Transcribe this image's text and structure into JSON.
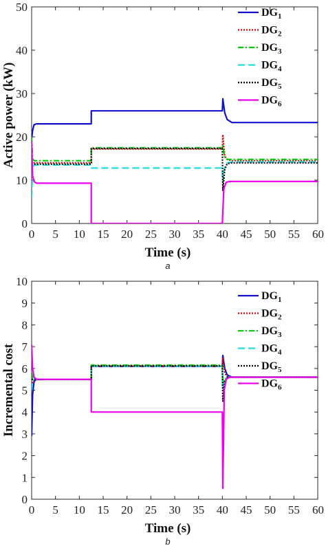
{
  "chart_data": [
    {
      "type": "line",
      "caption": "a",
      "xlabel": "Time (s)",
      "ylabel": "Active power (kW)",
      "xlim": [
        0,
        60
      ],
      "ylim": [
        0,
        50
      ],
      "xticks": [
        "0",
        "5",
        "10",
        "15",
        "20",
        "25",
        "30",
        "35",
        "40",
        "45",
        "50",
        "55",
        "60"
      ],
      "yticks": [
        "0",
        "10",
        "20",
        "30",
        "40",
        "50"
      ],
      "legend_position": "top-right",
      "series": [
        {
          "name": "DG",
          "sub": "1",
          "color": "#1010cc",
          "dash": "",
          "x": [
            0,
            0.2,
            0.5,
            1,
            12.5,
            12.5,
            40,
            40.1,
            40.5,
            41,
            42,
            60
          ],
          "y": [
            19.5,
            21.5,
            22.8,
            23,
            23,
            26,
            26,
            28.8,
            25.5,
            24,
            23.3,
            23.3
          ]
        },
        {
          "name": "DG",
          "sub": "2",
          "color": "#dd0000",
          "dash": "2,2",
          "x": [
            0,
            0.2,
            0.5,
            1,
            12.5,
            12.5,
            40,
            40.1,
            40.5,
            41,
            42,
            60
          ],
          "y": [
            13.5,
            13.8,
            14,
            14,
            14,
            17.2,
            17.2,
            20.5,
            15.5,
            14.8,
            14.5,
            14.5
          ]
        },
        {
          "name": "DG",
          "sub": "3",
          "color": "#00cc00",
          "dash": "8,3,2,3",
          "x": [
            0,
            0.2,
            0.5,
            1,
            12.5,
            12.5,
            40,
            40.1,
            40.5,
            41,
            42,
            60
          ],
          "y": [
            20,
            15,
            14.5,
            14.5,
            14.5,
            17.5,
            17.5,
            18,
            15.2,
            14.8,
            14.8,
            14.8
          ]
        },
        {
          "name": "DG",
          "sub": "4",
          "color": "#22dddd",
          "dash": "10,5",
          "x": [
            0,
            0.2,
            0.5,
            1,
            12.5,
            12.5,
            40,
            40.1,
            40.5,
            41,
            42,
            60
          ],
          "y": [
            6,
            12.5,
            13.5,
            13.5,
            13.5,
            12.8,
            12.8,
            9.5,
            13,
            14,
            14.2,
            14.2
          ]
        },
        {
          "name": "DG",
          "sub": "5",
          "color": "#000000",
          "dash": "2,2",
          "x": [
            0,
            0.2,
            0.5,
            1,
            12.5,
            12.5,
            40,
            40.1,
            40.5,
            41,
            42,
            60
          ],
          "y": [
            13.5,
            13.6,
            13.7,
            13.7,
            13.7,
            17.3,
            17.3,
            7.5,
            12.5,
            13.8,
            14,
            14
          ]
        },
        {
          "name": "DG",
          "sub": "6",
          "color": "#ee00ee",
          "dash": "",
          "x": [
            0,
            0.2,
            0.5,
            1,
            12.5,
            12.5,
            40,
            40.3,
            40.8,
            41.5,
            60
          ],
          "y": [
            19,
            11,
            9.7,
            9.3,
            9.3,
            0,
            0,
            8,
            9.5,
            9.7,
            9.7
          ]
        }
      ]
    },
    {
      "type": "line",
      "caption": "b",
      "xlabel": "Time (s)",
      "ylabel": "Incremental cost",
      "xlim": [
        0,
        60
      ],
      "ylim": [
        0,
        10
      ],
      "xticks": [
        "0",
        "5",
        "10",
        "15",
        "20",
        "25",
        "30",
        "35",
        "40",
        "45",
        "50",
        "55",
        "60"
      ],
      "yticks": [
        "0",
        "1",
        "2",
        "3",
        "4",
        "5",
        "6",
        "7",
        "8",
        "9",
        "10"
      ],
      "legend_position": "top-right",
      "series": [
        {
          "name": "DG",
          "sub": "1",
          "color": "#1010cc",
          "dash": "",
          "x": [
            0,
            0.2,
            0.5,
            1,
            12.5,
            12.5,
            40,
            40.1,
            40.5,
            41,
            42,
            60
          ],
          "y": [
            2.9,
            4.8,
            5.4,
            5.5,
            5.5,
            6.1,
            6.1,
            6.6,
            6,
            5.7,
            5.6,
            5.6
          ]
        },
        {
          "name": "DG",
          "sub": "2",
          "color": "#dd0000",
          "dash": "2,2",
          "x": [
            0,
            0.2,
            0.5,
            1,
            12.5,
            12.5,
            40,
            40.1,
            40.5,
            41,
            42,
            60
          ],
          "y": [
            5.2,
            5.4,
            5.5,
            5.5,
            5.5,
            6.1,
            6.1,
            6.5,
            5.8,
            5.6,
            5.6,
            5.6
          ]
        },
        {
          "name": "DG",
          "sub": "3",
          "color": "#00cc00",
          "dash": "8,3,2,3",
          "x": [
            0,
            0.2,
            0.5,
            1,
            12.5,
            12.5,
            40,
            40.1,
            40.5,
            41,
            42,
            60
          ],
          "y": [
            5.8,
            5.6,
            5.5,
            5.5,
            5.5,
            6.15,
            6.15,
            5.2,
            5.5,
            5.6,
            5.6,
            5.6
          ]
        },
        {
          "name": "DG",
          "sub": "4",
          "color": "#22dddd",
          "dash": "10,5",
          "x": [
            0,
            0.2,
            0.5,
            1,
            12.5,
            12.5,
            40,
            40.1,
            40.5,
            41,
            42,
            60
          ],
          "y": [
            5,
            5.4,
            5.5,
            5.5,
            5.5,
            6.1,
            6.1,
            5,
            5.4,
            5.6,
            5.6,
            5.6
          ]
        },
        {
          "name": "DG",
          "sub": "5",
          "color": "#000000",
          "dash": "2,2",
          "x": [
            0,
            0.2,
            0.5,
            1,
            12.5,
            12.5,
            40,
            40.1,
            40.5,
            41,
            42,
            60
          ],
          "y": [
            5.5,
            5.5,
            5.5,
            5.5,
            5.5,
            6.12,
            6.12,
            4.5,
            5.4,
            5.6,
            5.6,
            5.6
          ]
        },
        {
          "name": "DG",
          "sub": "6",
          "color": "#ee00ee",
          "dash": "",
          "x": [
            0,
            0.2,
            0.5,
            1,
            12.5,
            12.5,
            40,
            40.1,
            40.4,
            40.8,
            41.5,
            60
          ],
          "y": [
            7.1,
            6,
            5.6,
            5.5,
            5.5,
            4,
            4,
            0.5,
            5,
            5.5,
            5.6,
            5.6
          ]
        }
      ]
    }
  ]
}
